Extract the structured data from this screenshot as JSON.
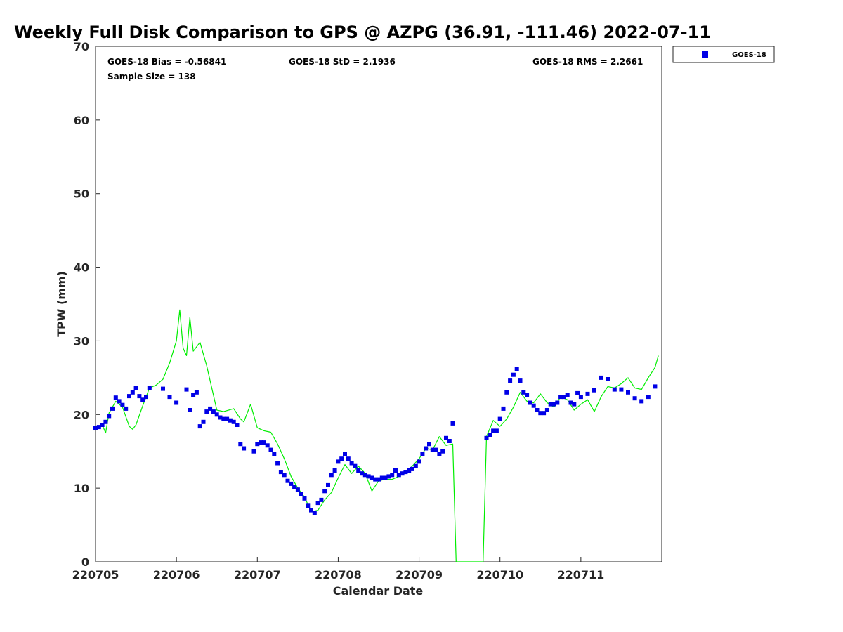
{
  "chart_data": {
    "type": "scatter",
    "title": "Weekly Full Disk Comparison to GPS @ AZPG (36.91, -111.46) 2022-07-11",
    "xlabel": "Calendar Date",
    "ylabel": "TPW (mm)",
    "xlim": [
      "2022-07-05 00:00",
      "2022-07-12 00:00"
    ],
    "ylim": [
      0,
      70
    ],
    "yticks": [
      0,
      10,
      20,
      30,
      40,
      50,
      60,
      70
    ],
    "xticks": [
      {
        "label": "220705",
        "date": "2022-07-05"
      },
      {
        "label": "220706",
        "date": "2022-07-06"
      },
      {
        "label": "220707",
        "date": "2022-07-07"
      },
      {
        "label": "220708",
        "date": "2022-07-08"
      },
      {
        "label": "220709",
        "date": "2022-07-09"
      },
      {
        "label": "220710",
        "date": "2022-07-10"
      },
      {
        "label": "220711",
        "date": "2022-07-11"
      }
    ],
    "grid": false,
    "legend_position": "top-right, outside plot",
    "stats": {
      "bias": "GOES-18 Bias = -0.56841",
      "std": "GOES-18 StD = 2.1936",
      "rms": "GOES-18 RMS = 2.2661",
      "sample": "Sample Size = 138"
    },
    "series": [
      {
        "name": "GOES-18",
        "kind": "scatter",
        "marker": "square",
        "color": "#0000e6",
        "x": [
          "2022-07-05 00:00",
          "2022-07-05 01:00",
          "2022-07-05 02:00",
          "2022-07-05 03:00",
          "2022-07-05 04:00",
          "2022-07-05 05:00",
          "2022-07-05 06:00",
          "2022-07-05 07:00",
          "2022-07-05 08:00",
          "2022-07-05 09:00",
          "2022-07-05 10:00",
          "2022-07-05 11:00",
          "2022-07-05 12:00",
          "2022-07-05 13:00",
          "2022-07-05 14:00",
          "2022-07-05 15:00",
          "2022-07-05 16:00",
          "2022-07-05 20:00",
          "2022-07-05 22:00",
          "2022-07-06 00:00",
          "2022-07-06 03:00",
          "2022-07-06 04:00",
          "2022-07-06 05:00",
          "2022-07-06 06:00",
          "2022-07-06 07:00",
          "2022-07-06 08:00",
          "2022-07-06 09:00",
          "2022-07-06 10:00",
          "2022-07-06 11:00",
          "2022-07-06 12:00",
          "2022-07-06 13:00",
          "2022-07-06 14:00",
          "2022-07-06 15:00",
          "2022-07-06 16:00",
          "2022-07-06 17:00",
          "2022-07-06 18:00",
          "2022-07-06 19:00",
          "2022-07-06 20:00",
          "2022-07-06 23:00",
          "2022-07-07 00:00",
          "2022-07-07 01:00",
          "2022-07-07 02:00",
          "2022-07-07 03:00",
          "2022-07-07 04:00",
          "2022-07-07 05:00",
          "2022-07-07 06:00",
          "2022-07-07 07:00",
          "2022-07-07 08:00",
          "2022-07-07 09:00",
          "2022-07-07 10:00",
          "2022-07-07 11:00",
          "2022-07-07 12:00",
          "2022-07-07 13:00",
          "2022-07-07 14:00",
          "2022-07-07 15:00",
          "2022-07-07 16:00",
          "2022-07-07 17:00",
          "2022-07-07 18:00",
          "2022-07-07 19:00",
          "2022-07-07 20:00",
          "2022-07-07 21:00",
          "2022-07-07 22:00",
          "2022-07-07 23:00",
          "2022-07-08 00:00",
          "2022-07-08 01:00",
          "2022-07-08 02:00",
          "2022-07-08 03:00",
          "2022-07-08 04:00",
          "2022-07-08 05:00",
          "2022-07-08 06:00",
          "2022-07-08 07:00",
          "2022-07-08 08:00",
          "2022-07-08 09:00",
          "2022-07-08 10:00",
          "2022-07-08 11:00",
          "2022-07-08 12:00",
          "2022-07-08 13:00",
          "2022-07-08 14:00",
          "2022-07-08 15:00",
          "2022-07-08 16:00",
          "2022-07-08 17:00",
          "2022-07-08 18:00",
          "2022-07-08 19:00",
          "2022-07-08 20:00",
          "2022-07-08 21:00",
          "2022-07-08 22:00",
          "2022-07-08 23:00",
          "2022-07-09 00:00",
          "2022-07-09 01:00",
          "2022-07-09 02:00",
          "2022-07-09 03:00",
          "2022-07-09 04:00",
          "2022-07-09 05:00",
          "2022-07-09 06:00",
          "2022-07-09 07:00",
          "2022-07-09 08:00",
          "2022-07-09 09:00",
          "2022-07-09 10:00",
          "2022-07-09 20:00",
          "2022-07-09 21:00",
          "2022-07-09 22:00",
          "2022-07-09 23:00",
          "2022-07-10 00:00",
          "2022-07-10 01:00",
          "2022-07-10 02:00",
          "2022-07-10 03:00",
          "2022-07-10 04:00",
          "2022-07-10 05:00",
          "2022-07-10 06:00",
          "2022-07-10 07:00",
          "2022-07-10 08:00",
          "2022-07-10 09:00",
          "2022-07-10 10:00",
          "2022-07-10 11:00",
          "2022-07-10 12:00",
          "2022-07-10 13:00",
          "2022-07-10 14:00",
          "2022-07-10 15:00",
          "2022-07-10 16:00",
          "2022-07-10 17:00",
          "2022-07-10 18:00",
          "2022-07-10 19:00",
          "2022-07-10 20:00",
          "2022-07-10 21:00",
          "2022-07-10 22:00",
          "2022-07-10 23:00",
          "2022-07-11 00:00",
          "2022-07-11 02:00",
          "2022-07-11 04:00",
          "2022-07-11 06:00",
          "2022-07-11 08:00",
          "2022-07-11 10:00",
          "2022-07-11 12:00",
          "2022-07-11 14:00",
          "2022-07-11 16:00",
          "2022-07-11 18:00",
          "2022-07-11 20:00",
          "2022-07-11 22:00"
        ],
        "y": [
          18.2,
          18.3,
          18.6,
          19.0,
          19.8,
          20.8,
          22.3,
          21.8,
          21.3,
          20.8,
          22.5,
          23.0,
          23.6,
          22.5,
          22.0,
          22.4,
          23.6,
          23.5,
          22.4,
          21.6,
          23.4,
          20.6,
          22.6,
          23.0,
          18.4,
          19.0,
          20.4,
          20.8,
          20.4,
          20.0,
          19.6,
          19.4,
          19.4,
          19.2,
          19.0,
          18.6,
          16.0,
          15.4,
          15.0,
          16.0,
          16.2,
          16.2,
          15.8,
          15.2,
          14.6,
          13.4,
          12.2,
          11.8,
          11.0,
          10.6,
          10.2,
          9.8,
          9.2,
          8.6,
          7.6,
          7.0,
          6.6,
          8.0,
          8.4,
          9.6,
          10.4,
          11.8,
          12.4,
          13.6,
          14.0,
          14.6,
          14.0,
          13.4,
          13.0,
          12.4,
          12.0,
          11.8,
          11.6,
          11.4,
          11.2,
          11.2,
          11.4,
          11.4,
          11.6,
          11.8,
          12.4,
          11.8,
          12.0,
          12.2,
          12.4,
          12.6,
          13.0,
          13.6,
          14.6,
          15.4,
          16.0,
          15.2,
          15.2,
          14.6,
          15.0,
          16.8,
          16.4,
          18.8,
          16.8,
          17.2,
          17.8,
          17.8,
          19.4,
          20.8,
          23.0,
          24.6,
          25.4,
          26.2,
          24.6,
          23.0,
          22.6,
          21.6,
          21.2,
          20.6,
          20.2,
          20.2,
          20.6,
          21.4,
          21.4,
          21.6,
          22.4,
          22.4,
          22.6,
          21.6,
          21.4,
          22.9,
          22.4,
          22.8,
          23.3,
          25.0,
          24.8,
          23.4,
          23.4,
          23.0,
          22.2,
          21.8,
          22.4,
          23.8
        ]
      },
      {
        "name": "GPS",
        "kind": "line",
        "color": "#00ee00",
        "x": [
          "2022-07-05 00:00",
          "2022-07-05 02:00",
          "2022-07-05 03:00",
          "2022-07-05 04:00",
          "2022-07-05 06:00",
          "2022-07-05 08:00",
          "2022-07-05 10:00",
          "2022-07-05 11:00",
          "2022-07-05 12:00",
          "2022-07-05 14:00",
          "2022-07-05 16:00",
          "2022-07-05 18:00",
          "2022-07-05 20:00",
          "2022-07-05 22:00",
          "2022-07-06 00:00",
          "2022-07-06 01:00",
          "2022-07-06 02:00",
          "2022-07-06 03:00",
          "2022-07-06 04:00",
          "2022-07-06 05:00",
          "2022-07-06 07:00",
          "2022-07-06 09:00",
          "2022-07-06 12:00",
          "2022-07-06 14:00",
          "2022-07-06 17:00",
          "2022-07-06 19:00",
          "2022-07-06 20:00",
          "2022-07-06 22:00",
          "2022-07-07 00:00",
          "2022-07-07 02:00",
          "2022-07-07 04:00",
          "2022-07-07 06:00",
          "2022-07-07 08:00",
          "2022-07-07 10:00",
          "2022-07-07 12:00",
          "2022-07-07 14:00",
          "2022-07-07 16:00",
          "2022-07-07 18:00",
          "2022-07-07 20:00",
          "2022-07-07 22:00",
          "2022-07-08 00:00",
          "2022-07-08 02:00",
          "2022-07-08 04:00",
          "2022-07-08 06:00",
          "2022-07-08 08:00",
          "2022-07-08 10:00",
          "2022-07-08 12:00",
          "2022-07-08 14:00",
          "2022-07-08 16:00",
          "2022-07-08 18:00",
          "2022-07-08 20:00",
          "2022-07-08 22:00",
          "2022-07-09 00:00",
          "2022-07-09 02:00",
          "2022-07-09 04:00",
          "2022-07-09 06:00",
          "2022-07-09 08:00",
          "2022-07-09 10:00",
          "2022-07-09 11:00",
          "2022-07-09 19:00",
          "2022-07-09 20:00",
          "2022-07-09 22:00",
          "2022-07-10 00:00",
          "2022-07-10 02:00",
          "2022-07-10 04:00",
          "2022-07-10 06:00",
          "2022-07-10 08:00",
          "2022-07-10 10:00",
          "2022-07-10 12:00",
          "2022-07-10 14:00",
          "2022-07-10 16:00",
          "2022-07-10 18:00",
          "2022-07-10 20:00",
          "2022-07-10 22:00",
          "2022-07-11 00:00",
          "2022-07-11 02:00",
          "2022-07-11 04:00",
          "2022-07-11 06:00",
          "2022-07-11 08:00",
          "2022-07-11 10:00",
          "2022-07-11 12:00",
          "2022-07-11 14:00",
          "2022-07-11 16:00",
          "2022-07-11 18:00",
          "2022-07-11 20:00",
          "2022-07-11 22:00",
          "2022-07-11 23:00"
        ],
        "y": [
          18.0,
          18.6,
          17.5,
          20.2,
          21.8,
          21.0,
          18.4,
          18.0,
          18.6,
          21.2,
          23.6,
          24.0,
          24.8,
          27.0,
          30.0,
          34.2,
          29.0,
          28.0,
          33.2,
          28.6,
          29.8,
          26.6,
          20.6,
          20.4,
          20.8,
          19.4,
          19.0,
          21.4,
          18.2,
          17.8,
          17.6,
          16.0,
          14.0,
          11.6,
          10.0,
          8.8,
          6.8,
          7.0,
          8.4,
          9.4,
          11.4,
          13.2,
          12.0,
          13.0,
          12.0,
          9.6,
          11.0,
          11.2,
          11.2,
          11.6,
          12.2,
          13.0,
          14.0,
          15.4,
          15.2,
          17.0,
          15.8,
          16.0,
          0.0,
          0.0,
          17.0,
          19.2,
          18.4,
          19.4,
          21.0,
          23.0,
          21.8,
          21.6,
          22.8,
          21.6,
          21.0,
          22.4,
          22.0,
          20.6,
          21.4,
          22.0,
          20.4,
          22.4,
          23.8,
          23.6,
          24.2,
          25.0,
          23.6,
          23.4,
          25.0,
          26.4,
          28.0
        ]
      }
    ]
  }
}
